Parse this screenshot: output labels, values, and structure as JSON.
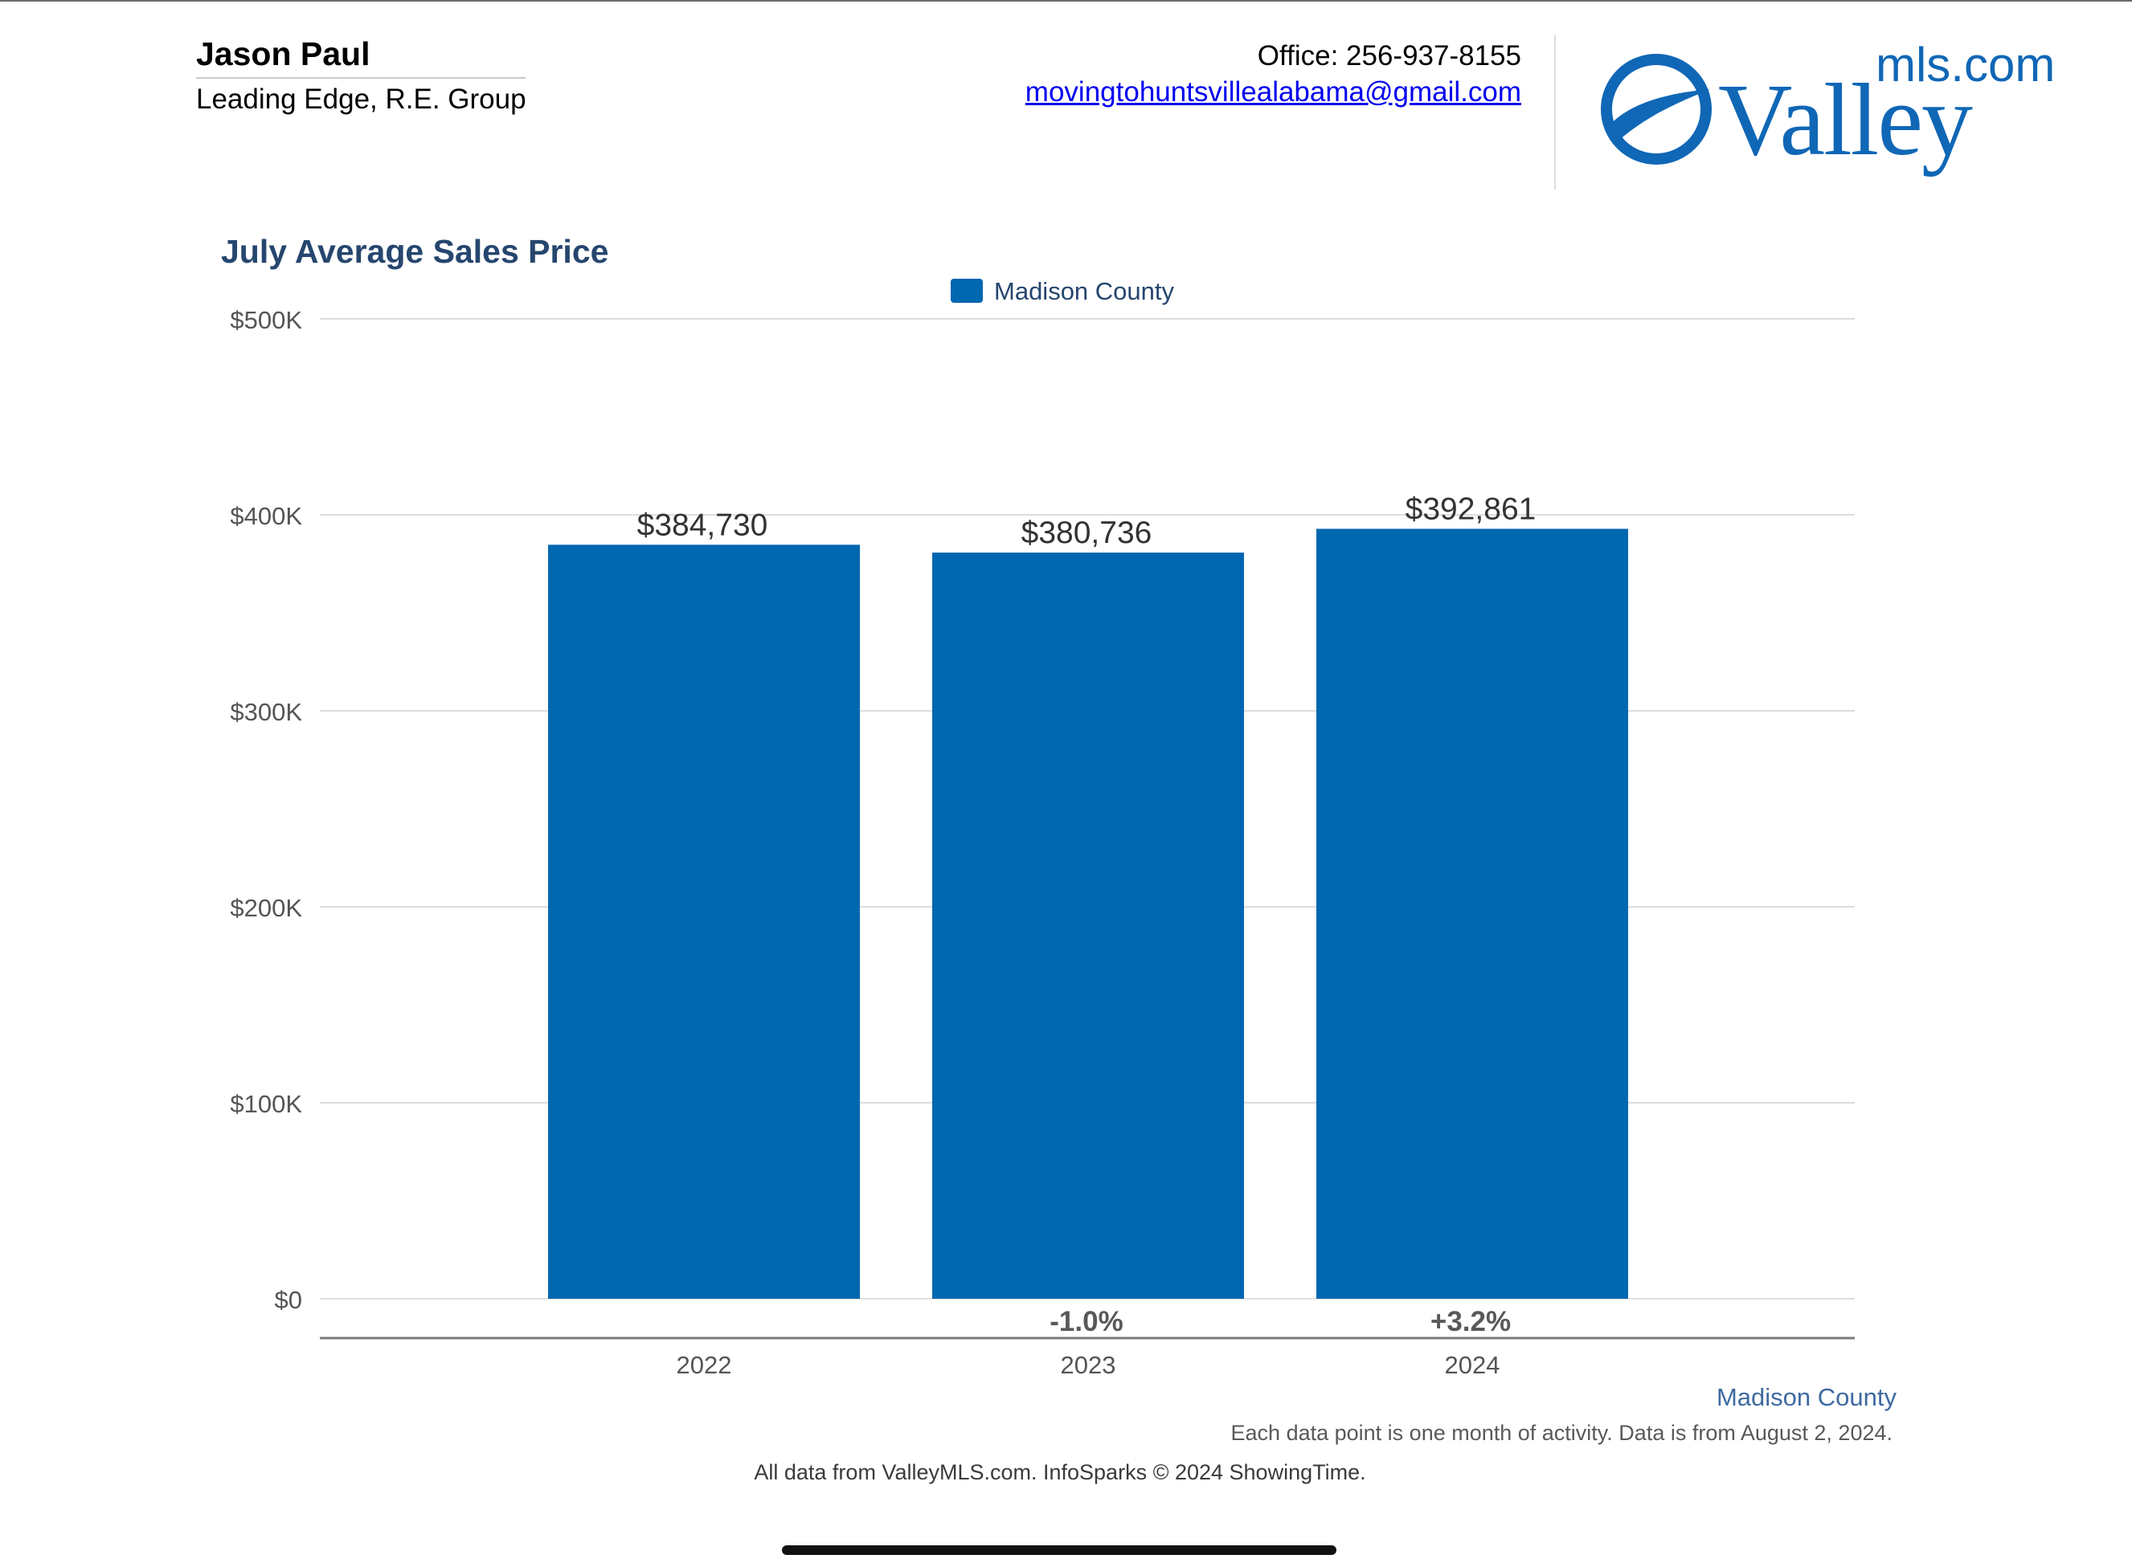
{
  "header": {
    "agent_name": "Jason Paul",
    "agent_company": "Leading Edge, R.E. Group",
    "office_phone": "Office: 256-937-8155",
    "email": "movingtohuntsvillealabama@gmail.com",
    "logo_word": "Valley",
    "logo_suffix": "mls.com"
  },
  "chart_data": {
    "type": "bar",
    "title": "July Average Sales Price",
    "categories": [
      "2022",
      "2023",
      "2024"
    ],
    "series": [
      {
        "name": "Madison County",
        "values": [
          384730,
          380736,
          392861
        ],
        "value_labels": [
          "$384,730",
          "$380,736",
          "$392,861"
        ],
        "color": "#0067b1"
      }
    ],
    "change_labels": [
      "",
      "-1.0%",
      "+3.2%"
    ],
    "yticks": [
      0,
      100000,
      200000,
      300000,
      400000,
      500000
    ],
    "ytick_labels": [
      "$0",
      "$100K",
      "$200K",
      "$300K",
      "$400K",
      "$500K"
    ],
    "ylim": [
      0,
      500000
    ],
    "xlabel": "",
    "ylabel": "",
    "grid": true,
    "legend_position": "top-center"
  },
  "footer": {
    "series_label": "Madison County",
    "note": "Each data point is one month of activity. Data is from August 2, 2024.",
    "source": "All data from ValleyMLS.com. InfoSparks © 2024 ShowingTime."
  },
  "colors": {
    "bar": "#0067b1",
    "title": "#25466e",
    "logo": "#1067b6",
    "grid": "#dddddd"
  }
}
